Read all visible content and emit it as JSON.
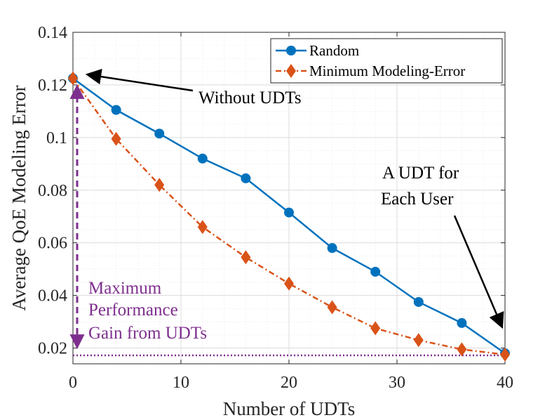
{
  "chart_data": {
    "type": "line",
    "xlabel": "Number of UDTs",
    "ylabel": "Average QoE Modeling Error",
    "xlim": [
      0,
      40
    ],
    "ylim": [
      0.014,
      0.14
    ],
    "xticks": [
      0,
      10,
      20,
      30,
      40
    ],
    "xtick_labels": [
      "0",
      "10",
      "20",
      "30",
      "40"
    ],
    "yticks": [
      0.02,
      0.04,
      0.06,
      0.08,
      0.1,
      0.12,
      0.14
    ],
    "ytick_labels": [
      "0.02",
      "0.04",
      "0.06",
      "0.08",
      "0.1",
      "0.12",
      "0.14"
    ],
    "grid": true,
    "legend_position": "top-right",
    "x": [
      0,
      4,
      8,
      12,
      16,
      20,
      24,
      28,
      32,
      36,
      40
    ],
    "series": [
      {
        "name": "Random",
        "color": "#0072BD",
        "marker": "circle",
        "line": "solid",
        "values": [
          0.1225,
          0.1105,
          0.1015,
          0.092,
          0.0845,
          0.0715,
          0.058,
          0.049,
          0.0375,
          0.0295,
          0.018
        ]
      },
      {
        "name": "Minimum Modeling-Error",
        "color": "#D95319",
        "marker": "diamond",
        "line": "dashdot",
        "values": [
          0.1225,
          0.0995,
          0.082,
          0.066,
          0.0545,
          0.0445,
          0.0355,
          0.0275,
          0.023,
          0.0195,
          0.0175
        ]
      }
    ],
    "reference_line": {
      "y": 0.0172,
      "color": "#7E2F8E",
      "style": "dotted"
    },
    "annotations": {
      "without_udts": "Without UDTs",
      "udt_each_user_line1": "A UDT for",
      "udt_each_user_line2": "Each User",
      "gain_line1": "Maximum",
      "gain_line2": "Performance",
      "gain_line3": "Gain from UDTs"
    },
    "annotation_color": "#7E2F8E"
  }
}
